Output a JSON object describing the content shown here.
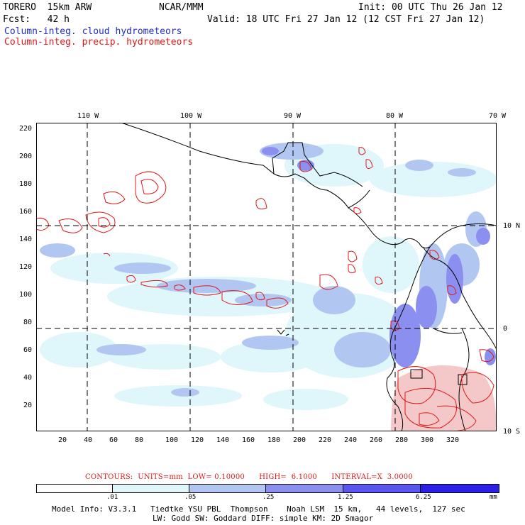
{
  "header": {
    "model": "TORERO  15km ARW",
    "org": "NCAR/MMM",
    "init": "Init: 00 UTC Thu 26 Jan 12",
    "fcst": "Fcst:   42 h",
    "valid": "Valid: 18 UTC Fri 27 Jan 12 (12 CST Fri 27 Jan 12)",
    "field_cloud": "Column-integ. cloud hydrometeors",
    "field_precip": "Column-integ. precip. hydrometeors"
  },
  "axes": {
    "top_longitudes": [
      "110 W",
      "100 W",
      "90 W",
      "80 W",
      "70 W"
    ],
    "right_latitudes": [
      "10 N",
      "0",
      "10 S"
    ],
    "left_ticks": [
      "220",
      "200",
      "180",
      "160",
      "140",
      "120",
      "100",
      "80",
      "60",
      "40",
      "20"
    ],
    "bottom_ticks": [
      "20",
      "40",
      "60",
      "80",
      "100",
      "120",
      "140",
      "160",
      "180",
      "200",
      "220",
      "240",
      "260",
      "280",
      "300",
      "320"
    ]
  },
  "contour_info": {
    "text": "CONTOURS:  UNITS=mm  LOW= 0.10000      HIGH=  6.1000      INTERVAL=X  3.0000"
  },
  "colorbar": {
    "labels": [
      ".01",
      ".05",
      ".25",
      "1.25",
      "6.25",
      "mm"
    ],
    "colors": [
      "#ffffff",
      "#dff6fb",
      "#b2c6f2",
      "#8a8ff0",
      "#5a55ee",
      "#2a20e8"
    ]
  },
  "footer": {
    "line1": "Model Info: V3.3.1   Tiedtke YSU PBL  Thompson    Noah LSM  15 km,   44 levels,  127 sec",
    "line2": "LW: Godd SW: Goddard DIFF: simple KM: 2D Smagor"
  },
  "colors": {
    "cloud_light": "#dff6fb",
    "cloud_mid": "#b2c6f2",
    "cloud_dark": "#8a8ff0",
    "cloud_deep": "#5a55ee",
    "precip_contour": "#e01818"
  }
}
